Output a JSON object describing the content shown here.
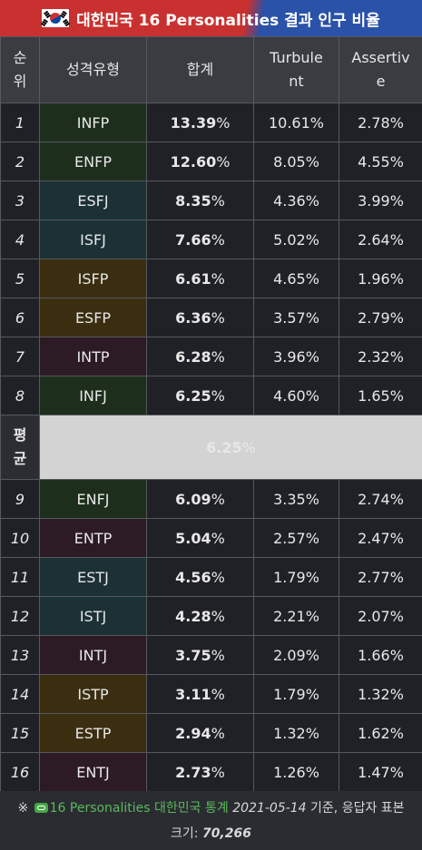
{
  "title": "대한민국 16 Personalities 결과 인구 비율",
  "headers": {
    "rank": "순\n위",
    "type": "성격유형",
    "total": "합계",
    "turbulent": "Turbule\nnt",
    "assertive": "Assertiv\ne"
  },
  "rows_top": [
    {
      "rank": "1",
      "type": "INFP",
      "total": "13.39",
      "turbulent": "10.61%",
      "assertive": "2.78%",
      "group": "nf"
    },
    {
      "rank": "2",
      "type": "ENFP",
      "total": "12.60",
      "turbulent": "8.05%",
      "assertive": "4.55%",
      "group": "nf"
    },
    {
      "rank": "3",
      "type": "ESFJ",
      "total": "8.35",
      "turbulent": "4.36%",
      "assertive": "3.99%",
      "group": "sj"
    },
    {
      "rank": "4",
      "type": "ISFJ",
      "total": "7.66",
      "turbulent": "5.02%",
      "assertive": "2.64%",
      "group": "sj"
    },
    {
      "rank": "5",
      "type": "ISFP",
      "total": "6.61",
      "turbulent": "4.65%",
      "assertive": "1.96%",
      "group": "sp"
    },
    {
      "rank": "6",
      "type": "ESFP",
      "total": "6.36",
      "turbulent": "3.57%",
      "assertive": "2.79%",
      "group": "sp"
    },
    {
      "rank": "7",
      "type": "INTP",
      "total": "6.28",
      "turbulent": "3.96%",
      "assertive": "2.32%",
      "group": "nt"
    },
    {
      "rank": "8",
      "type": "INFJ",
      "total": "6.25",
      "turbulent": "4.60%",
      "assertive": "1.65%",
      "group": "nf"
    }
  ],
  "average": {
    "label": "평\n균",
    "value": "6.25"
  },
  "rows_bottom": [
    {
      "rank": "9",
      "type": "ENFJ",
      "total": "6.09",
      "turbulent": "3.35%",
      "assertive": "2.74%",
      "group": "nf"
    },
    {
      "rank": "10",
      "type": "ENTP",
      "total": "5.04",
      "turbulent": "2.57%",
      "assertive": "2.47%",
      "group": "nt"
    },
    {
      "rank": "11",
      "type": "ESTJ",
      "total": "4.56",
      "turbulent": "1.79%",
      "assertive": "2.77%",
      "group": "sj"
    },
    {
      "rank": "12",
      "type": "ISTJ",
      "total": "4.28",
      "turbulent": "2.21%",
      "assertive": "2.07%",
      "group": "sj"
    },
    {
      "rank": "13",
      "type": "INTJ",
      "total": "3.75",
      "turbulent": "2.09%",
      "assertive": "1.66%",
      "group": "nt"
    },
    {
      "rank": "14",
      "type": "ISTP",
      "total": "3.11",
      "turbulent": "1.79%",
      "assertive": "1.32%",
      "group": "sp"
    },
    {
      "rank": "15",
      "type": "ESTP",
      "total": "2.94",
      "turbulent": "1.32%",
      "assertive": "1.62%",
      "group": "sp"
    },
    {
      "rank": "16",
      "type": "ENTJ",
      "total": "2.73",
      "turbulent": "1.26%",
      "assertive": "1.47%",
      "group": "nt"
    }
  ],
  "percent_sign": "%",
  "footer": {
    "mark": "※",
    "link_text": "16 Personalities 대한민국 통계",
    "date": "2021-05-14",
    "text_after_date": " 기준, 응답자 표본",
    "size_label": "크기: ",
    "size_value": "70,266"
  },
  "colors": {
    "nf": "#1d2f1c",
    "sj": "#1b3136",
    "sp": "#3b2e10",
    "nt": "#2c1a24"
  }
}
